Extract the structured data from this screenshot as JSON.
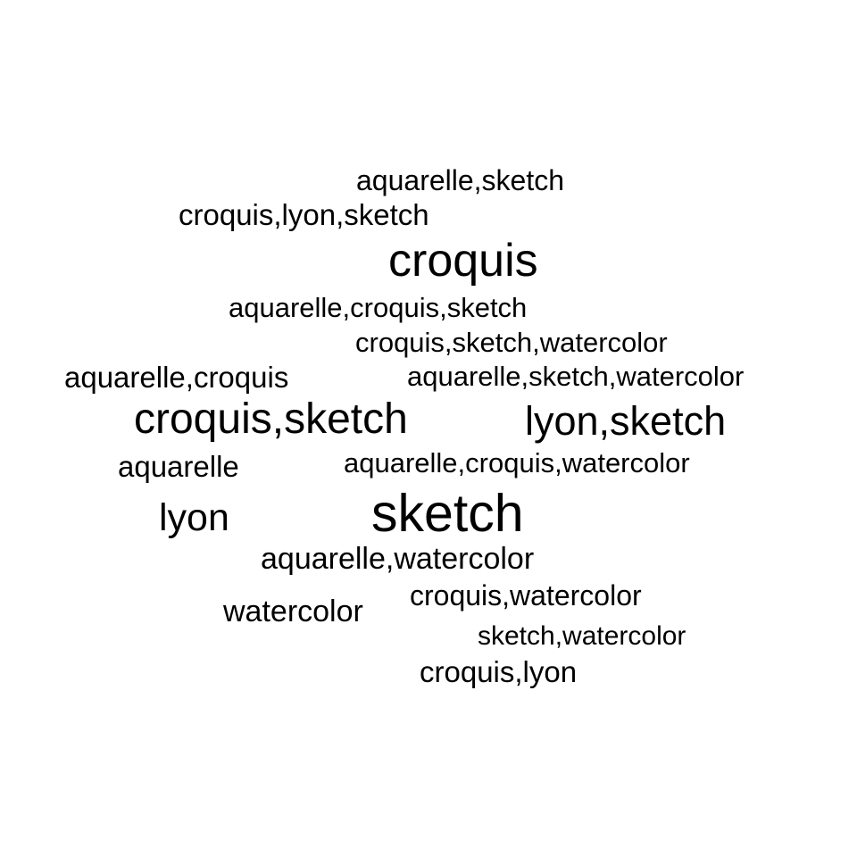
{
  "words": [
    "aquarelle,sketch",
    "croquis,lyon,sketch",
    "croquis",
    "aquarelle,croquis,sketch",
    "croquis,sketch,watercolor",
    "aquarelle,croquis",
    "aquarelle,sketch,watercolor",
    "croquis,sketch",
    "lyon,sketch",
    "aquarelle",
    "aquarelle,croquis,watercolor",
    "lyon",
    "sketch",
    "aquarelle,watercolor",
    "croquis,watercolor",
    "watercolor",
    "sketch,watercolor",
    "croquis,lyon"
  ],
  "colors": {
    "background": "#ffffff",
    "text": "#000000"
  }
}
